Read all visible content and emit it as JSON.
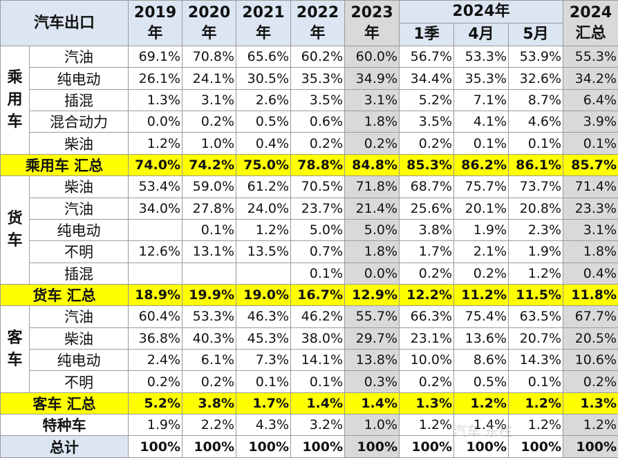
{
  "header": {
    "corner": "汽车出口",
    "years": [
      "2019\n年",
      "2020\n年",
      "2021\n年",
      "2022\n年",
      "2023\n年"
    ],
    "group_2024": "2024年",
    "sub_2024": [
      "1季",
      "4月",
      "5月"
    ],
    "total_2024": "2024\n汇总"
  },
  "groups": [
    {
      "name": "乘\n用\n车",
      "rows": [
        {
          "label": "汽油",
          "values": [
            "69.1%",
            "70.8%",
            "65.6%",
            "60.2%",
            "60.0%",
            "56.7%",
            "53.3%",
            "53.9%",
            "55.3%"
          ]
        },
        {
          "label": "纯电动",
          "values": [
            "26.1%",
            "24.1%",
            "30.5%",
            "35.3%",
            "34.9%",
            "34.4%",
            "35.3%",
            "32.6%",
            "34.2%"
          ]
        },
        {
          "label": "插混",
          "values": [
            "1.3%",
            "3.1%",
            "2.6%",
            "3.5%",
            "3.1%",
            "5.2%",
            "7.1%",
            "8.7%",
            "6.4%"
          ]
        },
        {
          "label": "混合动力",
          "values": [
            "0.0%",
            "0.2%",
            "0.5%",
            "0.6%",
            "1.8%",
            "3.5%",
            "4.1%",
            "4.6%",
            "3.9%"
          ]
        },
        {
          "label": "柴油",
          "values": [
            "1.2%",
            "1.0%",
            "0.4%",
            "0.2%",
            "0.2%",
            "0.2%",
            "0.1%",
            "0.1%",
            "0.1%"
          ]
        }
      ],
      "subtotal": {
        "label": "乘用车 汇总",
        "values": [
          "74.0%",
          "74.2%",
          "75.0%",
          "78.8%",
          "84.8%",
          "85.3%",
          "86.2%",
          "86.1%",
          "85.7%"
        ]
      }
    },
    {
      "name": "货\n车",
      "rows": [
        {
          "label": "柴油",
          "values": [
            "53.4%",
            "59.0%",
            "61.2%",
            "70.5%",
            "71.8%",
            "68.7%",
            "75.7%",
            "73.7%",
            "71.4%"
          ]
        },
        {
          "label": "汽油",
          "values": [
            "34.0%",
            "27.8%",
            "24.0%",
            "23.7%",
            "21.4%",
            "25.6%",
            "20.1%",
            "20.8%",
            "23.3%"
          ]
        },
        {
          "label": "纯电动",
          "values": [
            "",
            "0.1%",
            "1.2%",
            "5.0%",
            "5.0%",
            "3.8%",
            "1.9%",
            "2.3%",
            "3.1%"
          ]
        },
        {
          "label": "不明",
          "values": [
            "12.6%",
            "13.1%",
            "13.5%",
            "0.7%",
            "1.8%",
            "1.7%",
            "2.1%",
            "1.9%",
            "1.8%"
          ]
        },
        {
          "label": "插混",
          "values": [
            "",
            "",
            "",
            "0.1%",
            "0.0%",
            "0.2%",
            "0.2%",
            "1.2%",
            "0.4%"
          ]
        }
      ],
      "subtotal": {
        "label": "货车 汇总",
        "values": [
          "18.9%",
          "19.9%",
          "19.0%",
          "16.7%",
          "12.9%",
          "12.2%",
          "11.2%",
          "11.5%",
          "11.8%"
        ]
      }
    },
    {
      "name": "客\n车",
      "rows": [
        {
          "label": "汽油",
          "values": [
            "60.4%",
            "53.3%",
            "46.3%",
            "46.2%",
            "55.7%",
            "66.3%",
            "75.4%",
            "63.5%",
            "67.7%"
          ]
        },
        {
          "label": "柴油",
          "values": [
            "36.8%",
            "40.3%",
            "45.3%",
            "38.0%",
            "29.7%",
            "23.1%",
            "13.6%",
            "20.7%",
            "20.5%"
          ]
        },
        {
          "label": "纯电动",
          "values": [
            "2.4%",
            "6.1%",
            "7.3%",
            "14.1%",
            "13.8%",
            "10.0%",
            "8.6%",
            "14.3%",
            "10.6%"
          ]
        },
        {
          "label": "不明",
          "values": [
            "0.2%",
            "0.2%",
            "0.1%",
            "0.1%",
            "0.3%",
            "0.2%",
            "0.5%",
            "0.1%",
            "0.2%"
          ]
        }
      ],
      "subtotal": {
        "label": "客车 汇总",
        "values": [
          "5.2%",
          "3.8%",
          "1.7%",
          "1.4%",
          "1.4%",
          "1.3%",
          "1.2%",
          "1.2%",
          "1.3%"
        ]
      }
    }
  ],
  "special": {
    "label": "特种车",
    "values": [
      "1.9%",
      "2.2%",
      "4.3%",
      "3.2%",
      "1.0%",
      "1.2%",
      "1.4%",
      "1.2%",
      "1.2%"
    ]
  },
  "total": {
    "label": "总计",
    "values": [
      "100%",
      "100%",
      "100%",
      "100%",
      "100%",
      "100%",
      "100%",
      "100%",
      "100%"
    ]
  },
  "colors": {
    "header_bg": "#dce6f2",
    "highlight_2023": "#d9d9d9",
    "subtotal_bg": "#ffff00",
    "border": "#9a9a9a"
  },
  "watermark": "汽车 东柱"
}
